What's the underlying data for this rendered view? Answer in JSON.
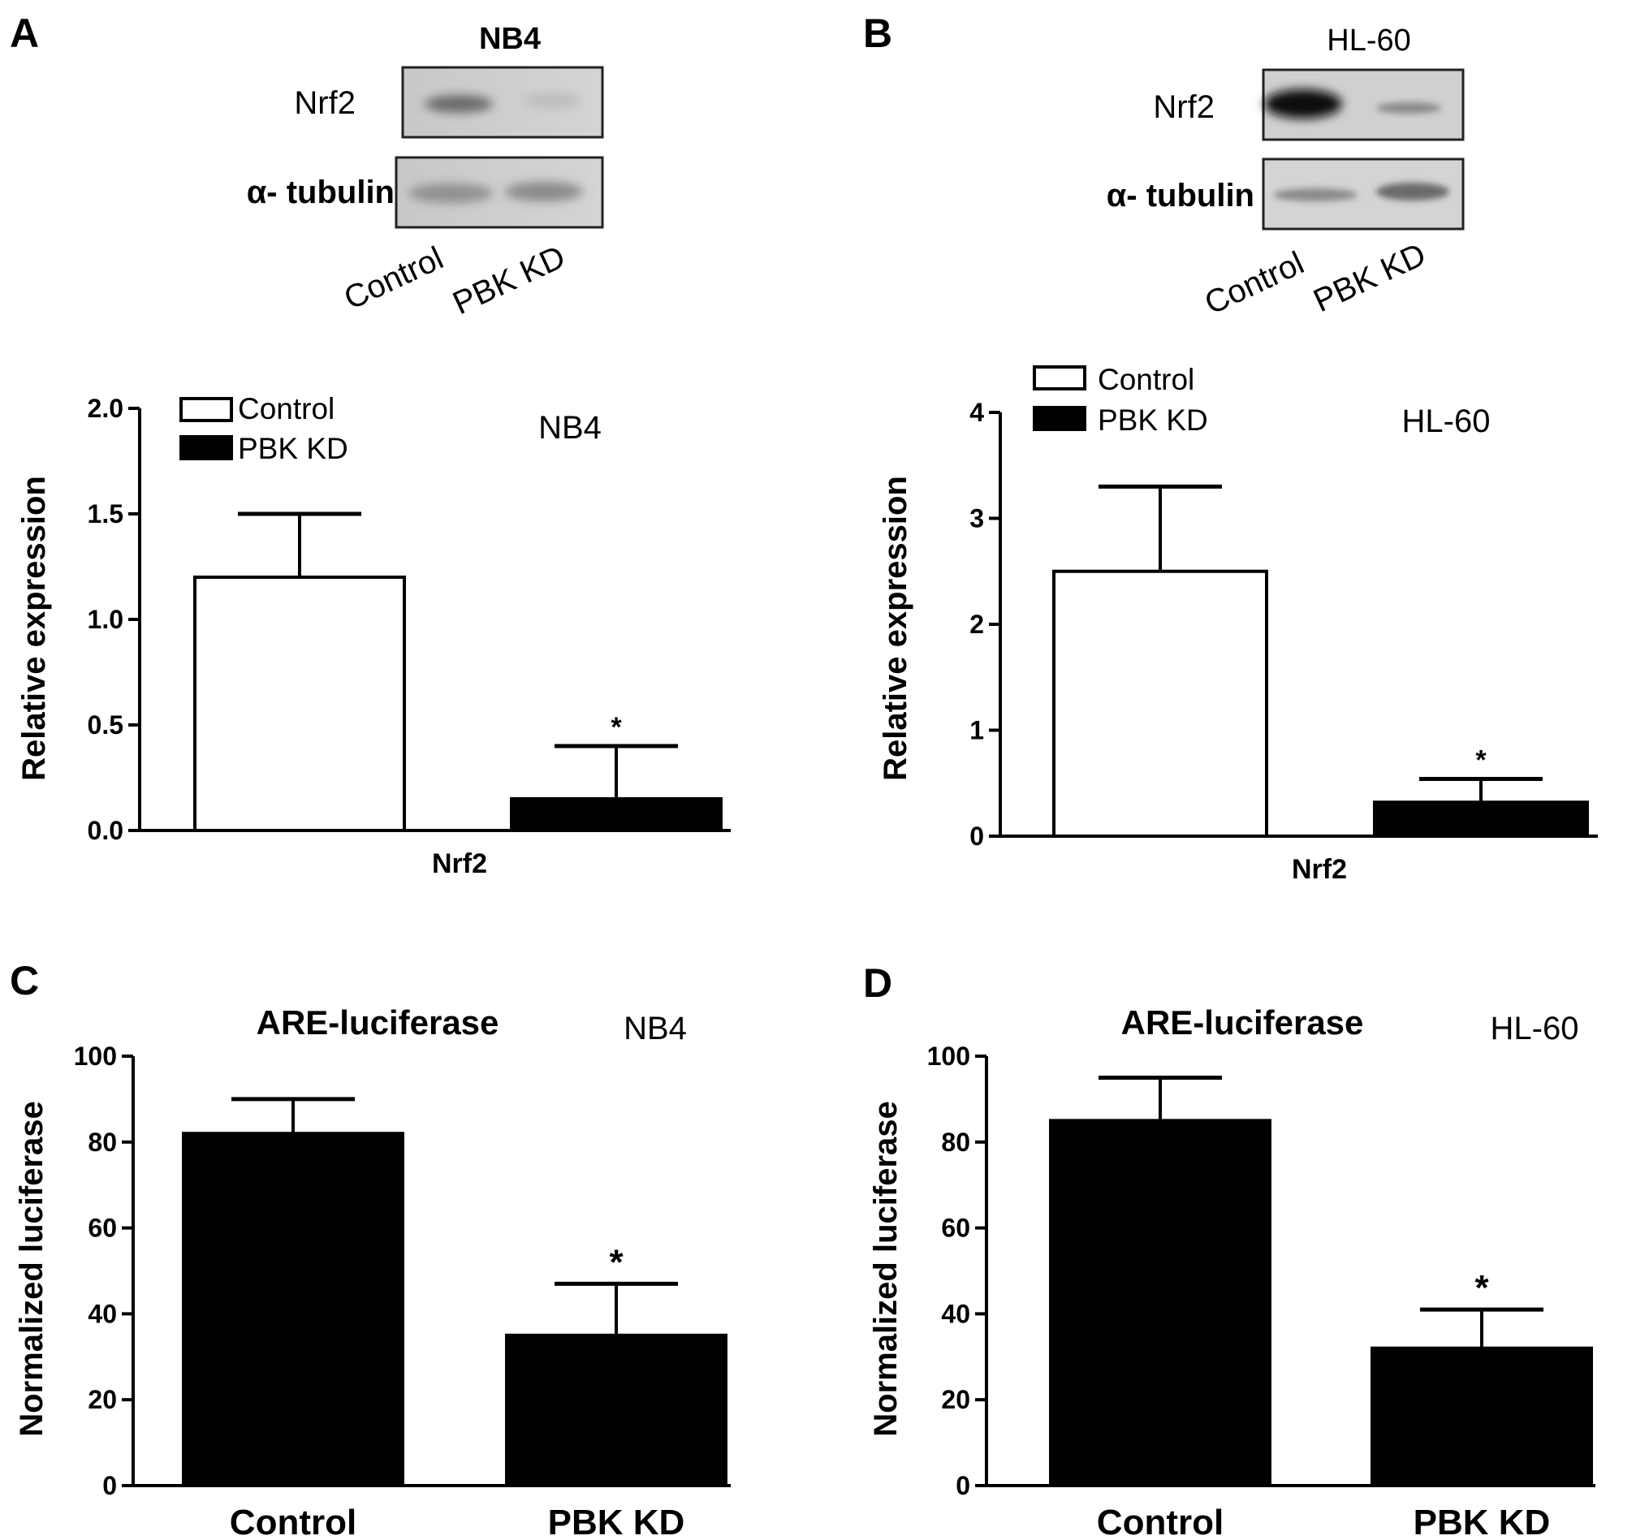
{
  "panels": [
    {
      "letter": "A",
      "blot": {
        "title": "NB4",
        "rows": [
          "Nrf2",
          "α- tubulin"
        ],
        "lanes": [
          "Control",
          "PBK KD"
        ]
      },
      "chart_data": {
        "type": "bar",
        "title": "NB4",
        "xlabel": "Nrf2",
        "ylabel": "Relative expression",
        "ylim": [
          0,
          2
        ],
        "yticks": [
          "0.0",
          "0.5",
          "1.0",
          "1.5",
          "2.0"
        ],
        "categories": [
          "Nrf2"
        ],
        "series": [
          {
            "name": "Control",
            "values": [
              1.2
            ],
            "errors": [
              0.3
            ],
            "fill": "#ffffff"
          },
          {
            "name": "PBK KD",
            "values": [
              0.15
            ],
            "errors": [
              0.25
            ],
            "fill": "#000000",
            "annotation": "*"
          }
        ],
        "legend": "top-left"
      }
    },
    {
      "letter": "B",
      "blot": {
        "title": "HL-60",
        "rows": [
          "Nrf2",
          "α- tubulin"
        ],
        "lanes": [
          "Control",
          "PBK KD"
        ]
      },
      "chart_data": {
        "type": "bar",
        "title": "HL-60",
        "xlabel": "Nrf2",
        "ylabel": "Relative expression",
        "ylim": [
          0,
          4
        ],
        "yticks": [
          "0",
          "1",
          "2",
          "3",
          "4"
        ],
        "categories": [
          "Nrf2"
        ],
        "series": [
          {
            "name": "Control",
            "values": [
              2.5
            ],
            "errors": [
              0.8
            ],
            "fill": "#ffffff"
          },
          {
            "name": "PBK KD",
            "values": [
              0.32
            ],
            "errors": [
              0.22
            ],
            "fill": "#000000",
            "annotation": "*"
          }
        ],
        "legend": "top-left"
      }
    },
    {
      "letter": "C",
      "chart_data": {
        "type": "bar",
        "title": "ARE-luciferase",
        "subtitle": "NB4",
        "xlabel": "",
        "ylabel": "Normalized luciferase",
        "ylim": [
          0,
          100
        ],
        "yticks": [
          "0",
          "20",
          "40",
          "60",
          "80",
          "100"
        ],
        "categories": [
          "Control",
          "PBK KD"
        ],
        "values": [
          82,
          35
        ],
        "errors": [
          8,
          12
        ],
        "annotations": [
          "",
          "*"
        ],
        "fill": "#000000"
      }
    },
    {
      "letter": "D",
      "chart_data": {
        "type": "bar",
        "title": "ARE-luciferase",
        "subtitle": "HL-60",
        "xlabel": "",
        "ylabel": "Normalized luciferase",
        "ylim": [
          0,
          100
        ],
        "yticks": [
          "0",
          "20",
          "40",
          "60",
          "80",
          "100"
        ],
        "categories": [
          "Control",
          "PBK KD"
        ],
        "values": [
          85,
          32
        ],
        "errors": [
          10,
          9
        ],
        "annotations": [
          "",
          "*"
        ],
        "fill": "#000000"
      }
    }
  ]
}
